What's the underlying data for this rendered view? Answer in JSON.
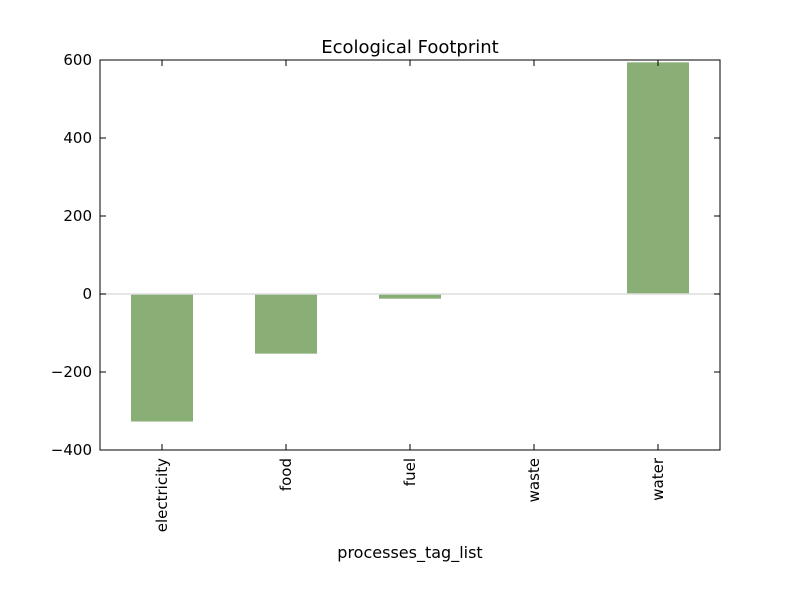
{
  "chart_data": {
    "type": "bar",
    "title": "Ecological Footprint",
    "xlabel": "processes_tag_list",
    "ylabel": "",
    "categories": [
      "electricity",
      "food",
      "fuel",
      "waste",
      "water"
    ],
    "values": [
      -327,
      -153,
      -12,
      0,
      594
    ],
    "ylim": [
      -400,
      600
    ],
    "yticks": [
      600,
      400,
      200,
      0,
      -200,
      -400
    ],
    "ytick_labels": [
      "600",
      "400",
      "200",
      "0",
      "−200",
      "−400"
    ],
    "bar_color": "#8aaf76",
    "zero_line_color": "#dddddd",
    "grid": false,
    "legend": "none"
  }
}
